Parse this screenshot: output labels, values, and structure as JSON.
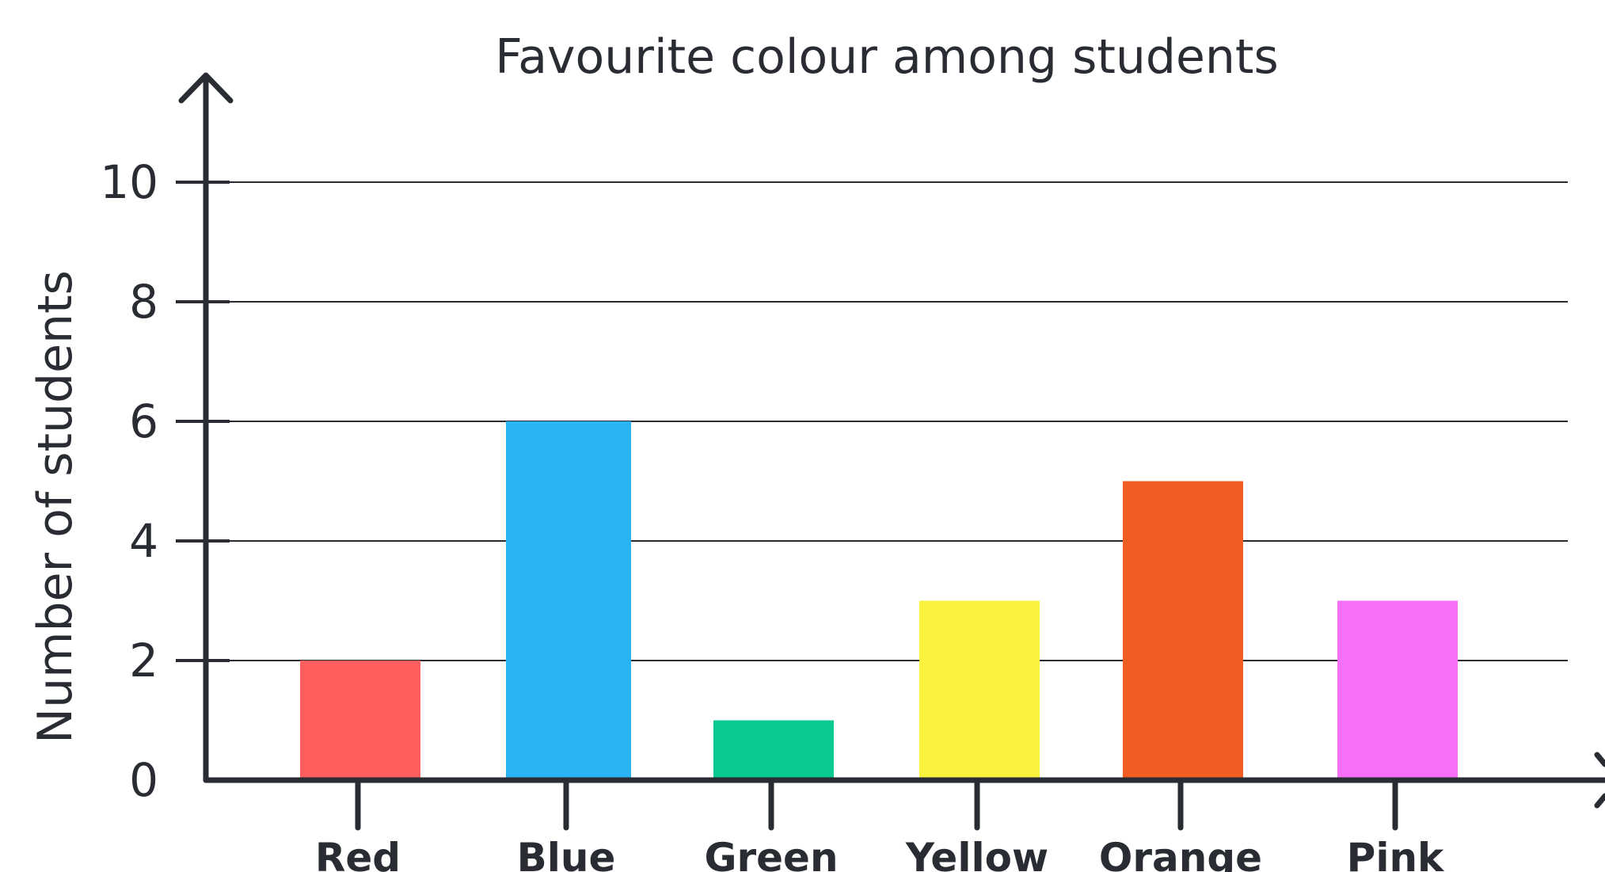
{
  "chart_data": {
    "type": "bar",
    "title": "Favourite colour among students",
    "xlabel": "",
    "ylabel": "Number of students",
    "categories": [
      "Red",
      "Blue",
      "Green",
      "Yellow",
      "Orange",
      "Pink"
    ],
    "values": [
      2,
      6,
      1,
      3,
      5,
      3
    ],
    "bar_colors": [
      "#ff5e5e",
      "#29b3f5",
      "#08c98f",
      "#fbf23d",
      "#f05d22",
      "#f76ff7"
    ],
    "yticks": [
      0,
      2,
      4,
      6,
      8,
      10
    ],
    "ylim": [
      0,
      11
    ],
    "grid": true,
    "legend": "none"
  }
}
